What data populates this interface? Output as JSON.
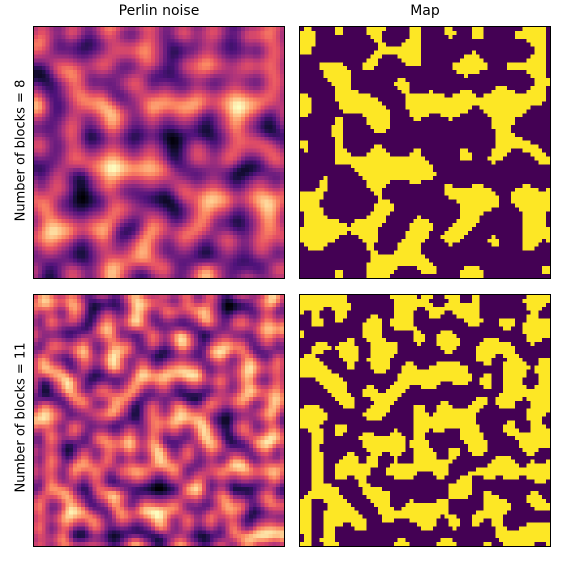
{
  "columns": {
    "left_title": "Perlin noise",
    "right_title": "Map"
  },
  "rows": {
    "top_label": "Number of blocks = 8",
    "bottom_label": "Number of blocks = 11"
  },
  "chart_data": [
    {
      "type": "heatmap",
      "title": "Perlin noise",
      "row_label": "Number of blocks = 8",
      "blocks": 8,
      "colormap": "magma",
      "resolution": 64
    },
    {
      "type": "heatmap",
      "title": "Map",
      "row_label": "Number of blocks = 8",
      "blocks": 8,
      "colormap": "binary purple/yellow",
      "threshold": 0.55,
      "resolution": 64
    },
    {
      "type": "heatmap",
      "title": "Perlin noise",
      "row_label": "Number of blocks = 11",
      "blocks": 11,
      "colormap": "magma",
      "resolution": 64
    },
    {
      "type": "heatmap",
      "title": "Map",
      "row_label": "Number of blocks = 11",
      "blocks": 11,
      "colormap": "binary purple/yellow",
      "threshold": 0.55,
      "resolution": 64
    }
  ],
  "colors": {
    "map_low": "#440154",
    "map_high": "#fde725"
  }
}
